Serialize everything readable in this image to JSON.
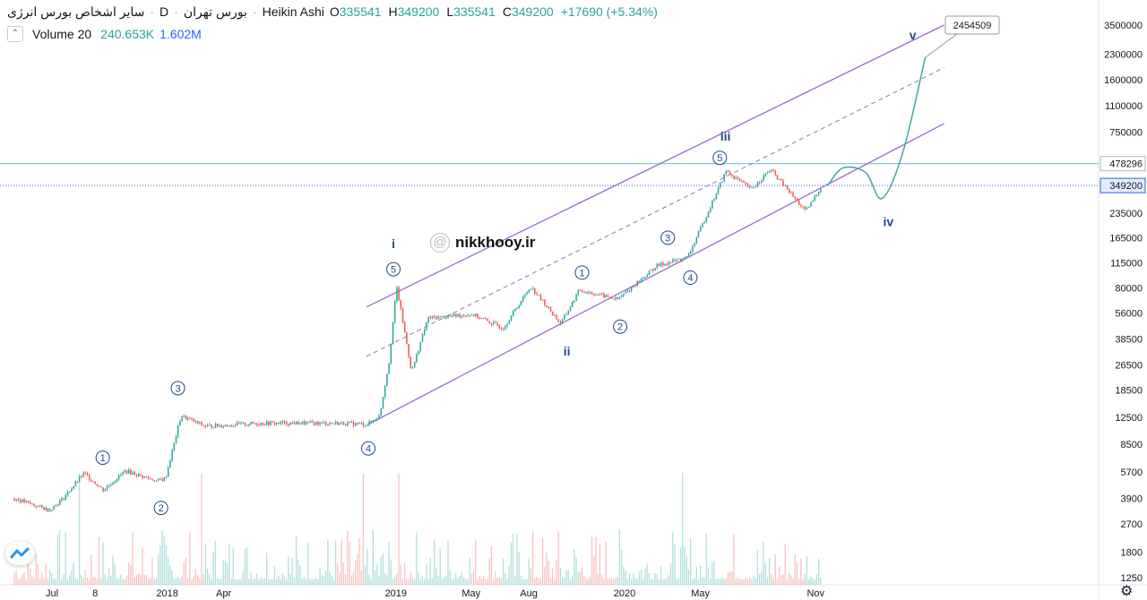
{
  "header": {
    "name": "سایر اشخاص بورس انرژی",
    "interval": "D",
    "exchange": "بورس تهران",
    "style": "Heikin Ashi",
    "o_label": "O",
    "o_value": "335541",
    "h_label": "H",
    "h_value": "349200",
    "l_label": "L",
    "l_value": "335541",
    "c_label": "C",
    "c_value": "349200",
    "change": "+17690 (+5.34%)"
  },
  "volume": {
    "label": "Volume 20",
    "value1": "240.653K",
    "value2": "1.602M"
  },
  "watermark": "nikkhooy.ir",
  "colors": {
    "up": "#26a69a",
    "down": "#ef5350",
    "channel": "#9c6ac9",
    "projection": "#3fa7a0",
    "hline": "#5fc3c9",
    "text": "#131722",
    "wave_label": "#1e4a8a"
  },
  "chart_data": {
    "type": "candlestick",
    "title": "",
    "scale": "log",
    "y_ticks": [
      "3500000",
      "2300000",
      "1600000",
      "1100000",
      "750000",
      "478296",
      "349200",
      "235000",
      "165000",
      "115000",
      "80000",
      "56000",
      "38500",
      "26500",
      "18500",
      "12500",
      "8500",
      "5700",
      "3900",
      "2700",
      "1800",
      "1250"
    ],
    "y_tick_values": [
      3500000,
      2300000,
      1600000,
      1100000,
      750000,
      478296,
      349200,
      235000,
      165000,
      115000,
      80000,
      56000,
      38500,
      26500,
      18500,
      12500,
      8500,
      5700,
      3900,
      2700,
      1800,
      1250
    ],
    "x_ticks": [
      "Jul",
      "8",
      "2018",
      "Apr",
      "2019",
      "May",
      "Aug",
      "2020",
      "May",
      "Nov"
    ],
    "x_tick_dates": [
      "2017-07-01",
      "2017-09-08",
      "2018-01-01",
      "2018-04-01",
      "2019-01-01",
      "2019-05-01",
      "2019-08-01",
      "2020-01-01",
      "2020-05-01",
      "2020-11-01"
    ],
    "price_path": [
      {
        "date": "2017-05-01",
        "price": 3900
      },
      {
        "date": "2017-06-25",
        "price": 3300
      },
      {
        "date": "2017-07-15",
        "price": 3800
      },
      {
        "date": "2017-08-20",
        "price": 5600
      },
      {
        "date": "2017-09-20",
        "price": 4400
      },
      {
        "date": "2017-10-25",
        "price": 5800
      },
      {
        "date": "2017-12-15",
        "price": 5000
      },
      {
        "date": "2017-12-28",
        "price": 5200
      },
      {
        "date": "2018-01-22",
        "price": 12800
      },
      {
        "date": "2018-03-01",
        "price": 11000
      },
      {
        "date": "2018-06-01",
        "price": 11500
      },
      {
        "date": "2018-10-01",
        "price": 11500
      },
      {
        "date": "2018-11-15",
        "price": 11300
      },
      {
        "date": "2018-12-05",
        "price": 12800
      },
      {
        "date": "2018-12-20",
        "price": 28000
      },
      {
        "date": "2019-01-01",
        "price": 82000
      },
      {
        "date": "2019-01-25",
        "price": 24000
      },
      {
        "date": "2019-02-20",
        "price": 52000
      },
      {
        "date": "2019-05-01",
        "price": 55000
      },
      {
        "date": "2019-06-20",
        "price": 45000
      },
      {
        "date": "2019-08-03",
        "price": 82000
      },
      {
        "date": "2019-09-20",
        "price": 48000
      },
      {
        "date": "2019-10-20",
        "price": 78000
      },
      {
        "date": "2019-12-20",
        "price": 68000
      },
      {
        "date": "2020-02-20",
        "price": 110000
      },
      {
        "date": "2020-04-10",
        "price": 125000
      },
      {
        "date": "2020-06-10",
        "price": 430000
      },
      {
        "date": "2020-07-20",
        "price": 330000
      },
      {
        "date": "2020-08-20",
        "price": 440000
      },
      {
        "date": "2020-10-15",
        "price": 240000
      },
      {
        "date": "2020-11-10",
        "price": 349200
      }
    ],
    "last_price": 349200,
    "hlines": [
      478296,
      349200
    ],
    "channel": {
      "upper": [
        {
          "date": "2018-11-15",
          "price": 61000
        },
        {
          "date": "2021-05-25",
          "price": 3500000
        }
      ],
      "middle": [
        {
          "date": "2018-11-15",
          "price": 30000
        },
        {
          "date": "2021-05-25",
          "price": 1900000
        }
      ],
      "lower": [
        {
          "date": "2018-11-18",
          "price": 11300
        },
        {
          "date": "2021-05-25",
          "price": 850000
        }
      ]
    },
    "projection": [
      {
        "date": "2020-11-20",
        "price": 349200
      },
      {
        "date": "2020-12-15",
        "price": 450000
      },
      {
        "date": "2021-01-20",
        "price": 420000
      },
      {
        "date": "2021-02-15",
        "price": 290000
      },
      {
        "date": "2021-03-20",
        "price": 560000
      },
      {
        "date": "2021-04-25",
        "price": 2200000
      }
    ],
    "target_label": "2454509",
    "wave_labels": [
      {
        "text": "1",
        "circled": true,
        "date": "2017-09-20",
        "price": 7000
      },
      {
        "text": "2",
        "circled": true,
        "date": "2017-12-22",
        "price": 3400
      },
      {
        "text": "3",
        "circled": true,
        "date": "2018-01-18",
        "price": 19000
      },
      {
        "text": "4",
        "circled": true,
        "date": "2018-11-18",
        "price": 8000
      },
      {
        "text": "5",
        "circled": true,
        "date": "2018-12-28",
        "price": 105000
      },
      {
        "text": "i",
        "circled": false,
        "date": "2018-12-28",
        "price": 150000
      },
      {
        "text": "1",
        "circled": true,
        "date": "2019-10-25",
        "price": 100000
      },
      {
        "text": "ii",
        "circled": false,
        "date": "2019-10-01",
        "price": 32000
      },
      {
        "text": "2",
        "circled": true,
        "date": "2019-12-25",
        "price": 46000
      },
      {
        "text": "3",
        "circled": true,
        "date": "2020-03-10",
        "price": 165000
      },
      {
        "text": "4",
        "circled": true,
        "date": "2020-04-15",
        "price": 93000
      },
      {
        "text": "5",
        "circled": true,
        "date": "2020-06-01",
        "price": 520000
      },
      {
        "text": "iii",
        "circled": false,
        "date": "2020-06-10",
        "price": 700000
      },
      {
        "text": "iv",
        "circled": false,
        "date": "2021-02-25",
        "price": 205000
      },
      {
        "text": "v",
        "circled": false,
        "date": "2021-04-05",
        "price": 3000000
      }
    ]
  }
}
